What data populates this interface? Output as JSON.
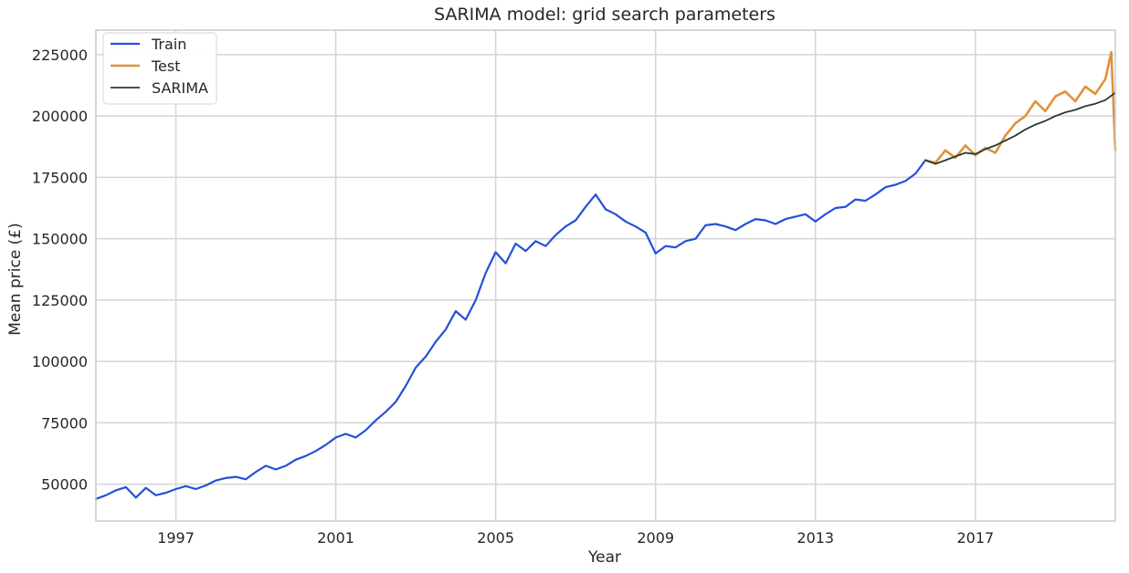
{
  "chart_data": {
    "type": "line",
    "title": "SARIMA model: grid search parameters",
    "xlabel": "Year",
    "ylabel": "Mean price (£)",
    "xlim": [
      1995.0,
      2020.5
    ],
    "ylim": [
      35000,
      235000
    ],
    "x_ticks": [
      1997,
      2001,
      2005,
      2009,
      2013,
      2017
    ],
    "y_ticks": [
      50000,
      75000,
      100000,
      125000,
      150000,
      175000,
      200000,
      225000
    ],
    "grid": true,
    "legend_position": "top-left",
    "colors": {
      "train": "#2450d8",
      "test": "#e0923a",
      "sarima": "#2b3b2f",
      "grid": "#d2d4d8",
      "frame": "#c8cacd"
    },
    "series": [
      {
        "name": "Train",
        "points": [
          [
            1995.0,
            44000
          ],
          [
            1995.25,
            45500
          ],
          [
            1995.5,
            47500
          ],
          [
            1995.75,
            48800
          ],
          [
            1996.0,
            44500
          ],
          [
            1996.25,
            48500
          ],
          [
            1996.5,
            45500
          ],
          [
            1996.75,
            46500
          ],
          [
            1997.0,
            48000
          ],
          [
            1997.25,
            49200
          ],
          [
            1997.5,
            48000
          ],
          [
            1997.75,
            49500
          ],
          [
            1998.0,
            51500
          ],
          [
            1998.25,
            52500
          ],
          [
            1998.5,
            53000
          ],
          [
            1998.75,
            52000
          ],
          [
            1999.0,
            55000
          ],
          [
            1999.25,
            57500
          ],
          [
            1999.5,
            56000
          ],
          [
            1999.75,
            57500
          ],
          [
            2000.0,
            60000
          ],
          [
            2000.25,
            61500
          ],
          [
            2000.5,
            63500
          ],
          [
            2000.75,
            66000
          ],
          [
            2001.0,
            69000
          ],
          [
            2001.25,
            70500
          ],
          [
            2001.5,
            69000
          ],
          [
            2001.75,
            72000
          ],
          [
            2002.0,
            76000
          ],
          [
            2002.25,
            79500
          ],
          [
            2002.5,
            83500
          ],
          [
            2002.75,
            90000
          ],
          [
            2003.0,
            97500
          ],
          [
            2003.25,
            102000
          ],
          [
            2003.5,
            108000
          ],
          [
            2003.75,
            113000
          ],
          [
            2004.0,
            120500
          ],
          [
            2004.25,
            117000
          ],
          [
            2004.5,
            125000
          ],
          [
            2004.75,
            136000
          ],
          [
            2005.0,
            144500
          ],
          [
            2005.25,
            140000
          ],
          [
            2005.5,
            148000
          ],
          [
            2005.75,
            145000
          ],
          [
            2006.0,
            149000
          ],
          [
            2006.25,
            147000
          ],
          [
            2006.5,
            151500
          ],
          [
            2006.75,
            155000
          ],
          [
            2007.0,
            157500
          ],
          [
            2007.25,
            163000
          ],
          [
            2007.5,
            168000
          ],
          [
            2007.75,
            162000
          ],
          [
            2008.0,
            160000
          ],
          [
            2008.25,
            157000
          ],
          [
            2008.5,
            155000
          ],
          [
            2008.75,
            152500
          ],
          [
            2009.0,
            144000
          ],
          [
            2009.25,
            147000
          ],
          [
            2009.5,
            146500
          ],
          [
            2009.75,
            149000
          ],
          [
            2010.0,
            150000
          ],
          [
            2010.25,
            155500
          ],
          [
            2010.5,
            156000
          ],
          [
            2010.75,
            155000
          ],
          [
            2011.0,
            153500
          ],
          [
            2011.25,
            156000
          ],
          [
            2011.5,
            158000
          ],
          [
            2011.75,
            157500
          ],
          [
            2012.0,
            156000
          ],
          [
            2012.25,
            158000
          ],
          [
            2012.5,
            159000
          ],
          [
            2012.75,
            160000
          ],
          [
            2013.0,
            157000
          ],
          [
            2013.25,
            160000
          ],
          [
            2013.5,
            162500
          ],
          [
            2013.75,
            163000
          ],
          [
            2014.0,
            166000
          ],
          [
            2014.25,
            165500
          ],
          [
            2014.5,
            168000
          ],
          [
            2014.75,
            171000
          ],
          [
            2015.0,
            172000
          ],
          [
            2015.25,
            173500
          ],
          [
            2015.5,
            176500
          ],
          [
            2015.75,
            182000
          ]
        ]
      },
      {
        "name": "Test",
        "points": [
          [
            2015.75,
            182000
          ],
          [
            2016.0,
            181000
          ],
          [
            2016.25,
            186000
          ],
          [
            2016.5,
            183000
          ],
          [
            2016.75,
            188000
          ],
          [
            2017.0,
            184000
          ],
          [
            2017.25,
            187000
          ],
          [
            2017.5,
            185000
          ],
          [
            2017.75,
            192000
          ],
          [
            2018.0,
            197000
          ],
          [
            2018.25,
            200000
          ],
          [
            2018.5,
            206000
          ],
          [
            2018.75,
            202000
          ],
          [
            2019.0,
            208000
          ],
          [
            2019.25,
            210000
          ],
          [
            2019.5,
            206000
          ],
          [
            2019.75,
            212000
          ],
          [
            2020.0,
            209000
          ],
          [
            2020.25,
            215000
          ],
          [
            2020.4,
            226000
          ],
          [
            2020.5,
            186000
          ]
        ]
      },
      {
        "name": "SARIMA",
        "points": [
          [
            2015.75,
            182000
          ],
          [
            2016.0,
            180500
          ],
          [
            2016.25,
            182000
          ],
          [
            2016.5,
            183500
          ],
          [
            2016.75,
            185000
          ],
          [
            2017.0,
            184500
          ],
          [
            2017.25,
            186500
          ],
          [
            2017.5,
            188000
          ],
          [
            2017.75,
            190000
          ],
          [
            2018.0,
            192000
          ],
          [
            2018.25,
            194500
          ],
          [
            2018.5,
            196500
          ],
          [
            2018.75,
            198000
          ],
          [
            2019.0,
            200000
          ],
          [
            2019.25,
            201500
          ],
          [
            2019.5,
            202500
          ],
          [
            2019.75,
            204000
          ],
          [
            2020.0,
            205000
          ],
          [
            2020.25,
            206500
          ],
          [
            2020.5,
            209500
          ]
        ]
      }
    ]
  }
}
